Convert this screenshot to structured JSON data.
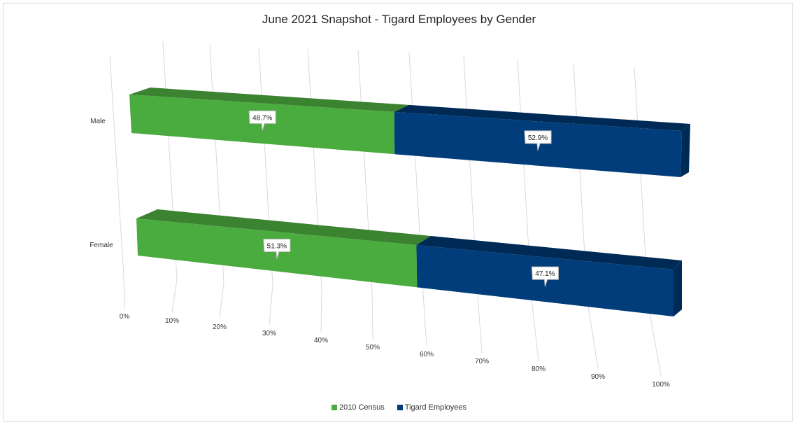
{
  "chart_data": {
    "type": "bar",
    "orientation": "horizontal",
    "stacked": "100%",
    "style": "3d",
    "title": "June 2021 Snapshot - Tigard Employees by Gender",
    "categories": [
      "Male",
      "Female"
    ],
    "series": [
      {
        "name": "2010 Census",
        "values": [
          48.7,
          51.3
        ],
        "labels": [
          "48.7%",
          "51.3%"
        ],
        "color": "#4aab3e",
        "top_color": "#3b8231"
      },
      {
        "name": "Tigard Employees",
        "values": [
          52.9,
          47.1
        ],
        "labels": [
          "52.9%",
          "47.1%"
        ],
        "color": "#003d7a",
        "top_color": "#002a56"
      }
    ],
    "x_ticks": [
      "0%",
      "10%",
      "20%",
      "30%",
      "40%",
      "50%",
      "60%",
      "70%",
      "80%",
      "90%",
      "100%"
    ],
    "xlim": [
      0,
      100
    ],
    "grid": true,
    "legend": "bottom"
  }
}
